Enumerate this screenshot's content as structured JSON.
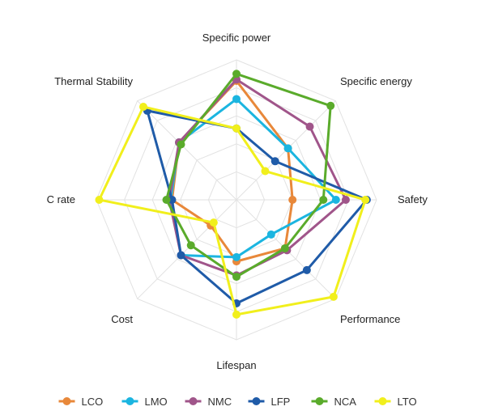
{
  "chart_data": {
    "type": "radar",
    "axes": [
      "Specific power",
      "Specific energy",
      "Safety",
      "Performance",
      "Lifespan",
      "Cost",
      "C rate",
      "Thermal Stability"
    ],
    "range": [
      0,
      5
    ],
    "grid_levels": 5,
    "legend_position": "bottom",
    "series": [
      {
        "name": "LCO",
        "color": "#e8883a",
        "values": [
          4.25,
          2.6,
          2.0,
          2.45,
          2.2,
          1.3,
          2.3,
          2.9
        ]
      },
      {
        "name": "LMO",
        "color": "#1bb5e0",
        "values": [
          3.6,
          2.6,
          3.55,
          1.75,
          2.05,
          2.8,
          2.35,
          2.9
        ]
      },
      {
        "name": "NMC",
        "color": "#a0558a",
        "values": [
          4.3,
          3.7,
          3.9,
          2.55,
          2.7,
          2.8,
          2.4,
          2.9
        ]
      },
      {
        "name": "LFP",
        "color": "#1f5ba8",
        "values": [
          2.55,
          1.95,
          4.65,
          3.55,
          3.7,
          2.8,
          2.3,
          4.5
        ]
      },
      {
        "name": "NCA",
        "color": "#5aab2b",
        "values": [
          4.5,
          4.75,
          3.1,
          2.45,
          2.75,
          2.3,
          2.5,
          2.8
        ]
      },
      {
        "name": "LTO",
        "color": "#f1ef1c",
        "values": [
          2.55,
          1.45,
          4.6,
          4.9,
          4.1,
          1.15,
          4.9,
          4.7
        ]
      }
    ]
  }
}
